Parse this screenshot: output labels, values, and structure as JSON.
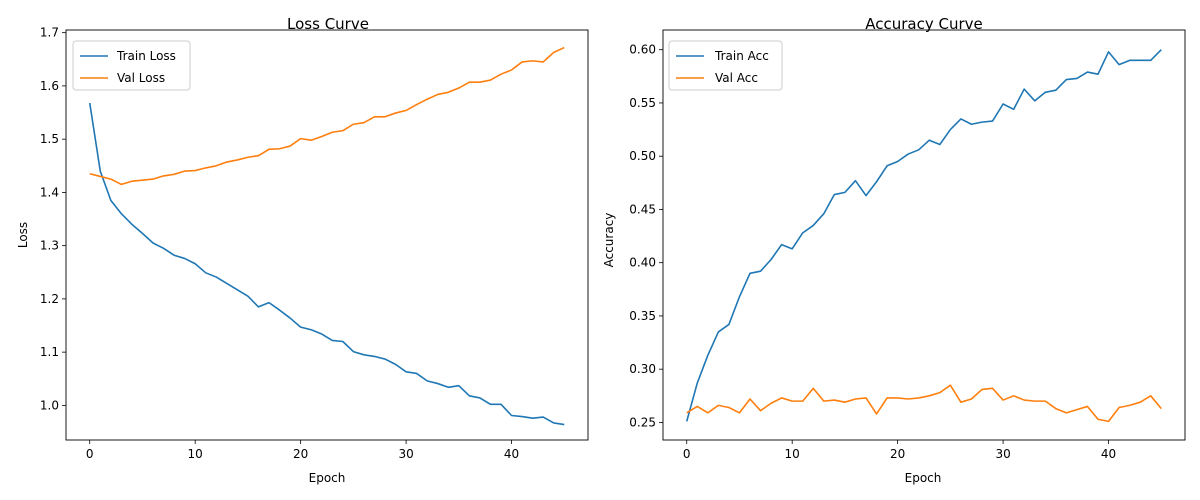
{
  "chart_data": [
    {
      "type": "line",
      "title": "Loss Curve",
      "xlabel": "Epoch",
      "ylabel": "Loss",
      "xlim": [
        -2.25,
        47.25
      ],
      "ylim": [
        0.935,
        1.705
      ],
      "xticks": [
        0,
        10,
        20,
        30,
        40
      ],
      "yticks": [
        1.0,
        1.1,
        1.2,
        1.3,
        1.4,
        1.5,
        1.6,
        1.7
      ],
      "ytick_decimals": 1,
      "legend": "upper-left",
      "grid": false,
      "x": [
        0,
        1,
        2,
        3,
        4,
        5,
        6,
        7,
        8,
        9,
        10,
        11,
        12,
        13,
        14,
        15,
        16,
        17,
        18,
        19,
        20,
        21,
        22,
        23,
        24,
        25,
        26,
        27,
        28,
        29,
        30,
        31,
        32,
        33,
        34,
        35,
        36,
        37,
        38,
        39,
        40,
        41,
        42,
        43,
        44,
        45
      ],
      "series": [
        {
          "name": "Train Loss",
          "color": "#1f77b4",
          "values": [
            1.568,
            1.44,
            1.385,
            1.36,
            1.34,
            1.323,
            1.305,
            1.295,
            1.282,
            1.276,
            1.266,
            1.249,
            1.241,
            1.229,
            1.217,
            1.205,
            1.185,
            1.193,
            1.179,
            1.164,
            1.147,
            1.142,
            1.134,
            1.122,
            1.12,
            1.101,
            1.095,
            1.092,
            1.087,
            1.077,
            1.063,
            1.06,
            1.046,
            1.041,
            1.034,
            1.037,
            1.018,
            1.014,
            1.002,
            1.002,
            0.981,
            0.979,
            0.976,
            0.978,
            0.967,
            0.964
          ]
        },
        {
          "name": "Val Loss",
          "color": "#ff7f0e",
          "values": [
            1.435,
            1.43,
            1.425,
            1.415,
            1.421,
            1.423,
            1.425,
            1.431,
            1.434,
            1.44,
            1.441,
            1.446,
            1.45,
            1.457,
            1.461,
            1.466,
            1.469,
            1.481,
            1.482,
            1.487,
            1.501,
            1.498,
            1.505,
            1.513,
            1.516,
            1.528,
            1.531,
            1.542,
            1.542,
            1.549,
            1.554,
            1.565,
            1.575,
            1.584,
            1.588,
            1.596,
            1.607,
            1.607,
            1.611,
            1.622,
            1.63,
            1.645,
            1.647,
            1.645,
            1.663,
            1.672
          ]
        }
      ]
    },
    {
      "type": "line",
      "title": "Accuracy Curve",
      "xlabel": "Epoch",
      "ylabel": "Accuracy",
      "xlim": [
        -2.25,
        47.25
      ],
      "ylim": [
        0.2335,
        0.6185
      ],
      "xticks": [
        0,
        10,
        20,
        30,
        40
      ],
      "yticks": [
        0.25,
        0.3,
        0.35,
        0.4,
        0.45,
        0.5,
        0.55,
        0.6
      ],
      "ytick_decimals": 2,
      "legend": "upper-left",
      "grid": false,
      "x": [
        0,
        1,
        2,
        3,
        4,
        5,
        6,
        7,
        8,
        9,
        10,
        11,
        12,
        13,
        14,
        15,
        16,
        17,
        18,
        19,
        20,
        21,
        22,
        23,
        24,
        25,
        26,
        27,
        28,
        29,
        30,
        31,
        32,
        33,
        34,
        35,
        36,
        37,
        38,
        39,
        40,
        41,
        42,
        43,
        44,
        45
      ],
      "series": [
        {
          "name": "Train Acc",
          "color": "#1f77b4",
          "values": [
            0.251,
            0.287,
            0.313,
            0.335,
            0.342,
            0.368,
            0.39,
            0.392,
            0.403,
            0.417,
            0.413,
            0.428,
            0.435,
            0.446,
            0.464,
            0.466,
            0.477,
            0.463,
            0.476,
            0.491,
            0.495,
            0.502,
            0.506,
            0.515,
            0.511,
            0.525,
            0.535,
            0.53,
            0.532,
            0.533,
            0.549,
            0.544,
            0.563,
            0.552,
            0.56,
            0.562,
            0.572,
            0.573,
            0.579,
            0.577,
            0.598,
            0.586,
            0.59,
            0.59,
            0.59,
            0.6
          ]
        },
        {
          "name": "Val Acc",
          "color": "#ff7f0e",
          "values": [
            0.259,
            0.265,
            0.259,
            0.266,
            0.264,
            0.259,
            0.272,
            0.261,
            0.268,
            0.273,
            0.27,
            0.27,
            0.282,
            0.27,
            0.271,
            0.269,
            0.272,
            0.273,
            0.258,
            0.273,
            0.273,
            0.272,
            0.273,
            0.275,
            0.278,
            0.285,
            0.269,
            0.272,
            0.281,
            0.282,
            0.271,
            0.275,
            0.271,
            0.27,
            0.27,
            0.263,
            0.259,
            0.262,
            0.265,
            0.253,
            0.251,
            0.264,
            0.266,
            0.269,
            0.275,
            0.263
          ]
        }
      ]
    }
  ]
}
